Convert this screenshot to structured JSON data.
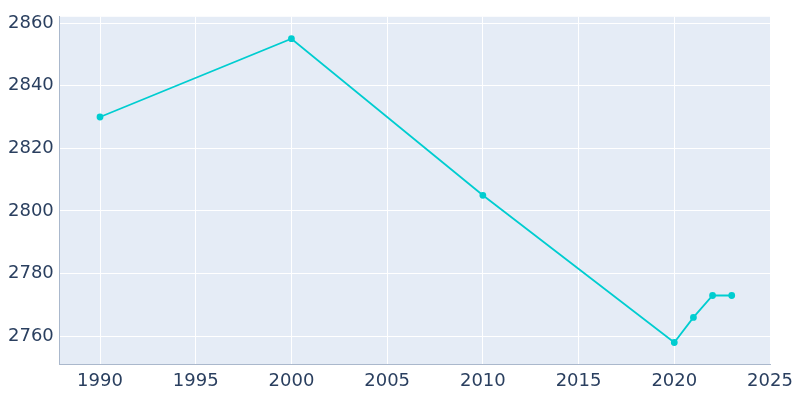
{
  "chart_data": {
    "type": "line",
    "x": [
      1990,
      2000,
      2010,
      2020,
      2021,
      2022,
      2023
    ],
    "values": [
      2830,
      2855,
      2805,
      2758,
      2766,
      2773,
      2773
    ],
    "color": "#00cdd0",
    "marker": "circle",
    "xlim": [
      1987.9,
      2025
    ],
    "xticks": [
      1990,
      1995,
      2000,
      2005,
      2010,
      2015,
      2020,
      2025
    ],
    "ylim": [
      2751,
      2862
    ],
    "yticks": [
      2760,
      2780,
      2800,
      2820,
      2840,
      2860
    ],
    "grid": true
  }
}
